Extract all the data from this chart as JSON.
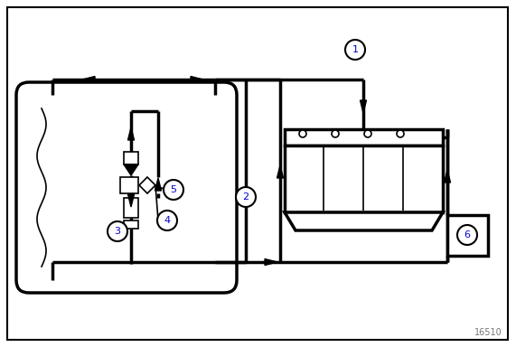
{
  "bg_color": "#ffffff",
  "line_color": "#000000",
  "lw_main": 2.5,
  "lw_thin": 1.2,
  "watermark": "16510",
  "fig_width": 5.71,
  "fig_height": 3.84,
  "dpi": 100,
  "arrow_size": 7
}
